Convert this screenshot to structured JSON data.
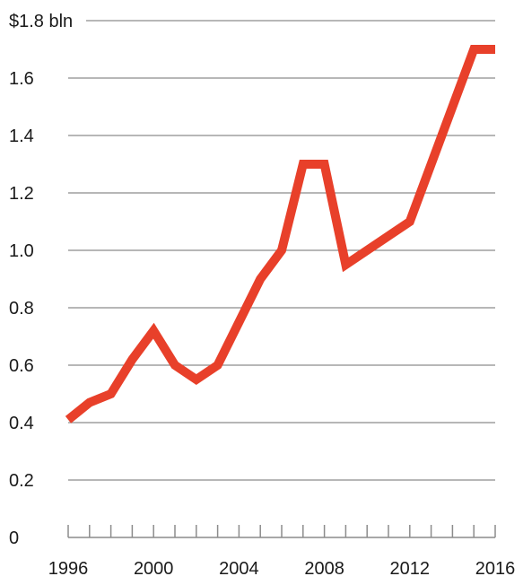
{
  "chart_data": {
    "type": "line",
    "title": "",
    "xlabel": "",
    "ylabel": "",
    "y_unit_label": "$1.8 bln",
    "ylim": [
      0,
      1.8
    ],
    "xlim": [
      1996,
      2016
    ],
    "grid": true,
    "y_ticks": [
      {
        "value": 0,
        "label": "0"
      },
      {
        "value": 0.2,
        "label": "0.2"
      },
      {
        "value": 0.4,
        "label": "0.4"
      },
      {
        "value": 0.6,
        "label": "0.6"
      },
      {
        "value": 0.8,
        "label": "0.8"
      },
      {
        "value": 1.0,
        "label": "1.0"
      },
      {
        "value": 1.2,
        "label": "1.2"
      },
      {
        "value": 1.4,
        "label": "1.4"
      },
      {
        "value": 1.6,
        "label": "1.6"
      },
      {
        "value": 1.8,
        "label": "$1.8 bln"
      }
    ],
    "x_tick_labels": [
      {
        "value": 1996,
        "label": "1996"
      },
      {
        "value": 2000,
        "label": "2000"
      },
      {
        "value": 2004,
        "label": "2004"
      },
      {
        "value": 2008,
        "label": "2008"
      },
      {
        "value": 2012,
        "label": "2012"
      },
      {
        "value": 2016,
        "label": "2016"
      }
    ],
    "x_minor_ticks": [
      1996,
      1997,
      1998,
      1999,
      2000,
      2001,
      2002,
      2003,
      2004,
      2005,
      2006,
      2007,
      2008,
      2009,
      2010,
      2011,
      2012,
      2013,
      2014,
      2015,
      2016
    ],
    "series": [
      {
        "color": "#e8402a",
        "points": [
          {
            "x": 1996,
            "y": 0.41
          },
          {
            "x": 1997,
            "y": 0.47
          },
          {
            "x": 1998,
            "y": 0.5
          },
          {
            "x": 1999,
            "y": 0.62
          },
          {
            "x": 2000,
            "y": 0.72
          },
          {
            "x": 2001,
            "y": 0.6
          },
          {
            "x": 2002,
            "y": 0.55
          },
          {
            "x": 2003,
            "y": 0.6
          },
          {
            "x": 2004,
            "y": 0.75
          },
          {
            "x": 2005,
            "y": 0.9
          },
          {
            "x": 2006,
            "y": 1.0
          },
          {
            "x": 2007,
            "y": 1.3
          },
          {
            "x": 2008,
            "y": 1.3
          },
          {
            "x": 2009,
            "y": 0.95
          },
          {
            "x": 2010,
            "y": 1.0
          },
          {
            "x": 2011,
            "y": 1.05
          },
          {
            "x": 2012,
            "y": 1.1
          },
          {
            "x": 2013,
            "y": 1.3
          },
          {
            "x": 2014,
            "y": 1.5
          },
          {
            "x": 2015,
            "y": 1.7
          },
          {
            "x": 2016,
            "y": 1.7
          }
        ]
      }
    ]
  }
}
